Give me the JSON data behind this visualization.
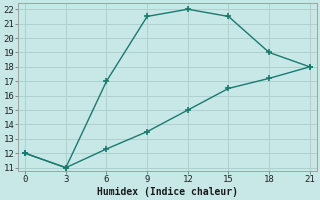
{
  "xlabel": "Humidex (Indice chaleur)",
  "line1_x": [
    0,
    3,
    6,
    9,
    12,
    15,
    18,
    21
  ],
  "line1_y": [
    12,
    11,
    17,
    21.5,
    22,
    21.5,
    19,
    18
  ],
  "line2_x": [
    0,
    3,
    6,
    9,
    12,
    15,
    18,
    21
  ],
  "line2_y": [
    12,
    11,
    12.3,
    13.5,
    15,
    16.5,
    17.2,
    18
  ],
  "line_color": "#1a7a6e",
  "bg_color": "#c8e8e8",
  "grid_color": "#b0d0d0",
  "xlim": [
    -0.5,
    21.5
  ],
  "ylim": [
    10.8,
    22.4
  ],
  "xticks": [
    0,
    3,
    6,
    9,
    12,
    15,
    18,
    21
  ],
  "yticks": [
    11,
    12,
    13,
    14,
    15,
    16,
    17,
    18,
    19,
    20,
    21,
    22
  ],
  "marker": "P",
  "markersize": 3.5,
  "linewidth": 1.0,
  "font_family": "monospace",
  "xlabel_fontsize": 7,
  "tick_fontsize": 6.5
}
